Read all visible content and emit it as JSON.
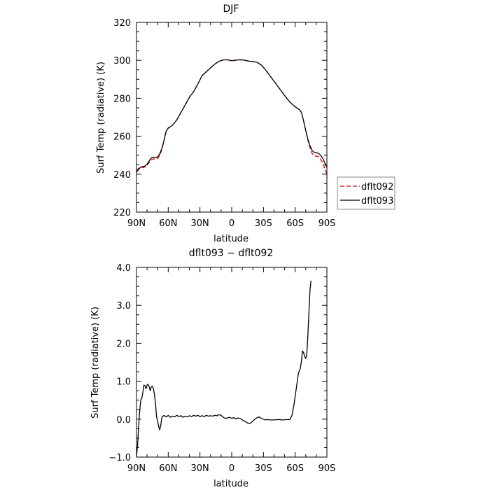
{
  "chart_data": [
    {
      "type": "line",
      "title": "DJF",
      "xlabel": "latitude",
      "ylabel": "Surf Temp (radiative) (K)",
      "xlim": [
        90,
        -90
      ],
      "ylim": [
        220,
        320
      ],
      "x_ticks": [
        90,
        60,
        30,
        0,
        -30,
        -60,
        -90
      ],
      "x_tick_labels": [
        "90N",
        "60N",
        "30N",
        "0",
        "30S",
        "60S",
        "90S"
      ],
      "y_ticks": [
        220,
        240,
        260,
        280,
        300,
        320
      ],
      "y_tick_labels": [
        "220",
        "240",
        "260",
        "280",
        "300",
        "320"
      ],
      "grid": false,
      "legend_position": "right",
      "series": [
        {
          "name": "dflt092",
          "color": "#cc0000",
          "style": "dashed",
          "points": [
            [
              90,
              242.0
            ],
            [
              88,
              243.0
            ],
            [
              86,
              243.6
            ],
            [
              84,
              243.5
            ],
            [
              82,
              243.8
            ],
            [
              80,
              244.6
            ],
            [
              78,
              246.2
            ],
            [
              76,
              247.6
            ],
            [
              74,
              248.1
            ],
            [
              72,
              247.9
            ],
            [
              70,
              248.3
            ],
            [
              68,
              250.0
            ],
            [
              66,
              253.0
            ],
            [
              64,
              257.5
            ],
            [
              62,
              262.5
            ],
            [
              60,
              264.4
            ],
            [
              56,
              265.8
            ],
            [
              52,
              268.5
            ],
            [
              48,
              272.5
            ],
            [
              44,
              276.5
            ],
            [
              40,
              280.5
            ],
            [
              36,
              283.5
            ],
            [
              32,
              287.5
            ],
            [
              28,
              292.0
            ],
            [
              24,
              294.0
            ],
            [
              20,
              296.0
            ],
            [
              16,
              298.0
            ],
            [
              12,
              299.5
            ],
            [
              8,
              300.2
            ],
            [
              4,
              300.3
            ],
            [
              0,
              299.8
            ],
            [
              -4,
              300.1
            ],
            [
              -8,
              300.3
            ],
            [
              -12,
              300.1
            ],
            [
              -16,
              299.6
            ],
            [
              -20,
              299.3
            ],
            [
              -24,
              299.0
            ],
            [
              -28,
              297.5
            ],
            [
              -32,
              295.0
            ],
            [
              -36,
              292.0
            ],
            [
              -40,
              289.0
            ],
            [
              -44,
              286.0
            ],
            [
              -48,
              283.0
            ],
            [
              -52,
              280.0
            ],
            [
              -56,
              277.5
            ],
            [
              -60,
              275.5
            ],
            [
              -64,
              274.0
            ],
            [
              -66,
              272.5
            ],
            [
              -68,
              268.0
            ],
            [
              -70,
              263.0
            ],
            [
              -72,
              258.0
            ],
            [
              -74,
              254.0
            ],
            [
              -76,
              251.0
            ],
            [
              -78,
              249.7
            ],
            [
              -80,
              249.5
            ],
            [
              -82,
              249.2
            ],
            [
              -84,
              248.0
            ],
            [
              -86,
              246.0
            ],
            [
              -88,
              243.0
            ],
            [
              -90,
              240.0
            ]
          ]
        },
        {
          "name": "dflt093",
          "color": "#000000",
          "style": "solid",
          "points": [
            [
              90,
              241.0
            ],
            [
              88,
              242.5
            ],
            [
              86,
              243.8
            ],
            [
              84,
              244.0
            ],
            [
              82,
              244.3
            ],
            [
              80,
              245.3
            ],
            [
              78,
              247.0
            ],
            [
              76,
              248.6
            ],
            [
              74,
              249.0
            ],
            [
              72,
              248.7
            ],
            [
              70,
              249.1
            ],
            [
              68,
              250.8
            ],
            [
              66,
              253.6
            ],
            [
              64,
              257.8
            ],
            [
              62,
              262.6
            ],
            [
              60,
              264.2
            ],
            [
              56,
              265.8
            ],
            [
              52,
              268.5
            ],
            [
              48,
              272.5
            ],
            [
              44,
              276.5
            ],
            [
              40,
              280.5
            ],
            [
              36,
              283.5
            ],
            [
              32,
              287.5
            ],
            [
              28,
              292.0
            ],
            [
              24,
              294.0
            ],
            [
              20,
              296.0
            ],
            [
              16,
              298.0
            ],
            [
              12,
              299.5
            ],
            [
              8,
              300.2
            ],
            [
              4,
              300.3
            ],
            [
              0,
              299.8
            ],
            [
              -4,
              300.1
            ],
            [
              -8,
              300.3
            ],
            [
              -12,
              300.1
            ],
            [
              -16,
              299.6
            ],
            [
              -20,
              299.3
            ],
            [
              -24,
              299.0
            ],
            [
              -28,
              297.5
            ],
            [
              -32,
              295.0
            ],
            [
              -36,
              292.0
            ],
            [
              -40,
              289.0
            ],
            [
              -44,
              286.0
            ],
            [
              -48,
              283.0
            ],
            [
              -52,
              280.0
            ],
            [
              -56,
              277.5
            ],
            [
              -60,
              275.5
            ],
            [
              -64,
              274.0
            ],
            [
              -66,
              272.5
            ],
            [
              -68,
              268.0
            ],
            [
              -70,
              263.0
            ],
            [
              -72,
              258.5
            ],
            [
              -74,
              255.0
            ],
            [
              -76,
              252.5
            ],
            [
              -78,
              251.5
            ],
            [
              -80,
              251.3
            ],
            [
              -82,
              251.0
            ],
            [
              -84,
              250.0
            ],
            [
              -86,
              248.5
            ],
            [
              -88,
              246.0
            ],
            [
              -90,
              243.5
            ]
          ]
        }
      ]
    },
    {
      "type": "line",
      "title": "dflt093 − dflt092",
      "xlabel": "latitude",
      "ylabel": "Surf Temp (radiative) (K)",
      "xlim": [
        90,
        -90
      ],
      "ylim": [
        -1.0,
        4.0
      ],
      "x_ticks": [
        90,
        60,
        30,
        0,
        -30,
        -60,
        -90
      ],
      "x_tick_labels": [
        "90N",
        "60N",
        "30N",
        "0",
        "30S",
        "60S",
        "90S"
      ],
      "y_ticks": [
        -1.0,
        0.0,
        1.0,
        2.0,
        3.0,
        4.0
      ],
      "y_tick_labels": [
        "−1.0",
        "0.0",
        "1.0",
        "2.0",
        "3.0",
        "4.0"
      ],
      "grid": false,
      "series": [
        {
          "color": "#000000",
          "style": "solid",
          "points": [
            [
              90,
              -0.98
            ],
            [
              89,
              -0.7
            ],
            [
              88,
              -0.2
            ],
            [
              87,
              0.2
            ],
            [
              86,
              0.5
            ],
            [
              85,
              0.55
            ],
            [
              84,
              0.7
            ],
            [
              83,
              0.9
            ],
            [
              82,
              0.88
            ],
            [
              81,
              0.8
            ],
            [
              80,
              0.9
            ],
            [
              79,
              0.92
            ],
            [
              78,
              0.85
            ],
            [
              77,
              0.75
            ],
            [
              76,
              0.85
            ],
            [
              75,
              0.87
            ],
            [
              74,
              0.8
            ],
            [
              73,
              0.65
            ],
            [
              72,
              0.4
            ],
            [
              71,
              0.05
            ],
            [
              70,
              -0.05
            ],
            [
              69,
              -0.2
            ],
            [
              68,
              -0.28
            ],
            [
              67,
              -0.15
            ],
            [
              66,
              0.05
            ],
            [
              64,
              0.1
            ],
            [
              62,
              0.06
            ],
            [
              60,
              0.1
            ],
            [
              58,
              0.05
            ],
            [
              56,
              0.08
            ],
            [
              54,
              0.06
            ],
            [
              52,
              0.1
            ],
            [
              50,
              0.07
            ],
            [
              48,
              0.09
            ],
            [
              46,
              0.05
            ],
            [
              44,
              0.08
            ],
            [
              42,
              0.06
            ],
            [
              40,
              0.09
            ],
            [
              38,
              0.07
            ],
            [
              36,
              0.1
            ],
            [
              34,
              0.08
            ],
            [
              32,
              0.1
            ],
            [
              30,
              0.07
            ],
            [
              28,
              0.09
            ],
            [
              26,
              0.07
            ],
            [
              24,
              0.1
            ],
            [
              22,
              0.08
            ],
            [
              20,
              0.09
            ],
            [
              18,
              0.08
            ],
            [
              16,
              0.1
            ],
            [
              14,
              0.09
            ],
            [
              12,
              0.12
            ],
            [
              10,
              0.1
            ],
            [
              8,
              0.05
            ],
            [
              6,
              0.02
            ],
            [
              4,
              0.03
            ],
            [
              2,
              0.05
            ],
            [
              0,
              0.02
            ],
            [
              -2,
              0.04
            ],
            [
              -4,
              0.01
            ],
            [
              -6,
              0.03
            ],
            [
              -8,
              0.02
            ],
            [
              -10,
              -0.02
            ],
            [
              -12,
              -0.05
            ],
            [
              -14,
              -0.08
            ],
            [
              -16,
              -0.12
            ],
            [
              -18,
              -0.1
            ],
            [
              -20,
              -0.05
            ],
            [
              -22,
              0.0
            ],
            [
              -24,
              0.04
            ],
            [
              -26,
              0.06
            ],
            [
              -28,
              0.02
            ],
            [
              -30,
              0.0
            ],
            [
              -32,
              -0.02
            ],
            [
              -34,
              -0.01
            ],
            [
              -36,
              -0.02
            ],
            [
              -40,
              -0.02
            ],
            [
              -44,
              -0.01
            ],
            [
              -48,
              -0.02
            ],
            [
              -52,
              -0.01
            ],
            [
              -55,
              -0.01
            ],
            [
              -57,
              0.1
            ],
            [
              -59,
              0.4
            ],
            [
              -61,
              0.8
            ],
            [
              -63,
              1.2
            ],
            [
              -65,
              1.35
            ],
            [
              -66,
              1.55
            ],
            [
              -67,
              1.8
            ],
            [
              -68,
              1.75
            ],
            [
              -69,
              1.65
            ],
            [
              -70,
              1.6
            ],
            [
              -71,
              1.7
            ],
            [
              -72,
              2.2
            ],
            [
              -73,
              2.8
            ],
            [
              -74,
              3.4
            ],
            [
              -75,
              3.65
            ]
          ]
        }
      ]
    }
  ],
  "legend": {
    "entries": [
      {
        "label": "dflt092",
        "color": "#cc0000",
        "style": "dashed"
      },
      {
        "label": "dflt093",
        "color": "#000000",
        "style": "solid"
      }
    ]
  }
}
